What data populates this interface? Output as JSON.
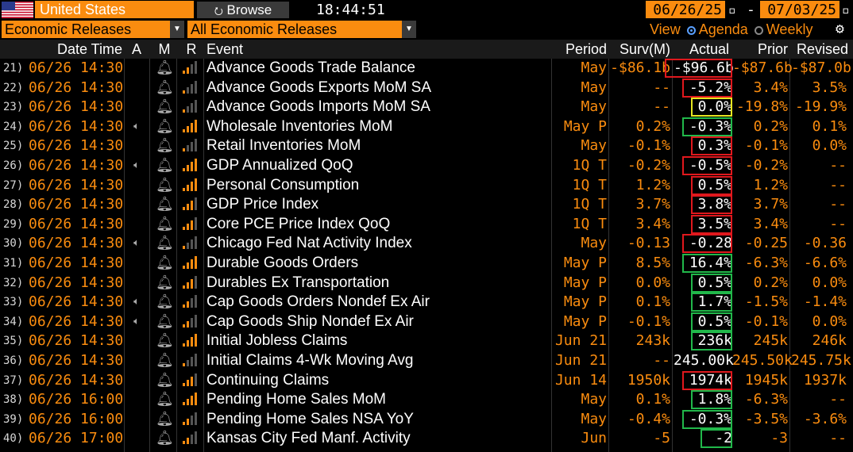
{
  "top_bar": {
    "country": "United States",
    "browse_label": "Browse",
    "time": "18:44:51",
    "start_date": "06/26/25",
    "end_date": "07/03/25"
  },
  "filter_bar": {
    "category": "Economic Releases",
    "subcategory": "All Economic Releases",
    "view_label": "View",
    "view_options": [
      "Agenda",
      "Weekly"
    ],
    "selected_view": "Agenda"
  },
  "columns": [
    "Date Time",
    "A",
    "M",
    "R",
    "Event",
    "Period",
    "Surv(M)",
    "Actual",
    "Prior",
    "Revised"
  ],
  "rows": [
    {
      "num": "21)",
      "dt": "06/26 14:30",
      "alert": false,
      "sig": 2,
      "event": "Advance Goods Trade Balance",
      "period": "May",
      "surv": "-$86.1b",
      "actual": "-$96.6b",
      "prior": "-$87.6b",
      "revised": "-$87.0b",
      "box": "red"
    },
    {
      "num": "22)",
      "dt": "06/26 14:30",
      "alert": false,
      "sig": 1,
      "event": "Advance Goods Exports MoM SA",
      "period": "May",
      "surv": "--",
      "actual": "-5.2%",
      "prior": "3.4%",
      "revised": "3.5%",
      "box": "red"
    },
    {
      "num": "23)",
      "dt": "06/26 14:30",
      "alert": false,
      "sig": 1,
      "event": "Advance Goods Imports MoM SA",
      "period": "May",
      "surv": "--",
      "actual": "0.0%",
      "prior": "-19.8%",
      "revised": "-19.9%",
      "box": "yellow"
    },
    {
      "num": "24)",
      "dt": "06/26 14:30",
      "alert": true,
      "sig": 4,
      "event": "Wholesale Inventories MoM",
      "period": "May P",
      "surv": "0.2%",
      "actual": "-0.3%",
      "prior": "0.2%",
      "revised": "0.1%",
      "box": "green"
    },
    {
      "num": "25)",
      "dt": "06/26 14:30",
      "alert": false,
      "sig": 1,
      "event": "Retail Inventories MoM",
      "period": "May",
      "surv": "-0.1%",
      "actual": "0.3%",
      "prior": "-0.1%",
      "revised": "0.0%",
      "box": "red"
    },
    {
      "num": "26)",
      "dt": "06/26 14:30",
      "alert": true,
      "sig": 4,
      "event": "GDP Annualized QoQ",
      "period": "1Q T",
      "surv": "-0.2%",
      "actual": "-0.5%",
      "prior": "-0.2%",
      "revised": "--",
      "box": "red"
    },
    {
      "num": "27)",
      "dt": "06/26 14:30",
      "alert": false,
      "sig": 4,
      "event": "Personal Consumption",
      "period": "1Q T",
      "surv": "1.2%",
      "actual": "0.5%",
      "prior": "1.2%",
      "revised": "--",
      "box": "red"
    },
    {
      "num": "28)",
      "dt": "06/26 14:30",
      "alert": false,
      "sig": 3,
      "event": "GDP Price Index",
      "period": "1Q T",
      "surv": "3.7%",
      "actual": "3.8%",
      "prior": "3.7%",
      "revised": "--",
      "box": "red"
    },
    {
      "num": "29)",
      "dt": "06/26 14:30",
      "alert": false,
      "sig": 3,
      "event": "Core PCE Price Index QoQ",
      "period": "1Q T",
      "surv": "3.4%",
      "actual": "3.5%",
      "prior": "3.4%",
      "revised": "--",
      "box": "red"
    },
    {
      "num": "30)",
      "dt": "06/26 14:30",
      "alert": true,
      "sig": 1,
      "event": "Chicago Fed Nat Activity Index",
      "period": "May",
      "surv": "-0.13",
      "actual": "-0.28",
      "prior": "-0.25",
      "revised": "-0.36",
      "box": "red"
    },
    {
      "num": "31)",
      "dt": "06/26 14:30",
      "alert": false,
      "sig": 4,
      "event": "Durable Goods Orders",
      "period": "May P",
      "surv": "8.5%",
      "actual": "16.4%",
      "prior": "-6.3%",
      "revised": "-6.6%",
      "box": "green"
    },
    {
      "num": "32)",
      "dt": "06/26 14:30",
      "alert": false,
      "sig": 3,
      "event": "Durables Ex Transportation",
      "period": "May P",
      "surv": "0.0%",
      "actual": "0.5%",
      "prior": "0.2%",
      "revised": "0.0%",
      "box": "green"
    },
    {
      "num": "33)",
      "dt": "06/26 14:30",
      "alert": true,
      "sig": 2,
      "event": "Cap Goods Orders Nondef Ex Air",
      "period": "May P",
      "surv": "0.1%",
      "actual": "1.7%",
      "prior": "-1.5%",
      "revised": "-1.4%",
      "box": "green"
    },
    {
      "num": "34)",
      "dt": "06/26 14:30",
      "alert": true,
      "sig": 2,
      "event": "Cap Goods Ship Nondef Ex Air",
      "period": "May P",
      "surv": "-0.1%",
      "actual": "0.5%",
      "prior": "-0.1%",
      "revised": "0.0%",
      "box": "green"
    },
    {
      "num": "35)",
      "dt": "06/26 14:30",
      "alert": false,
      "sig": 4,
      "event": "Initial Jobless Claims",
      "period": "Jun 21",
      "surv": "243k",
      "actual": "236k",
      "prior": "245k",
      "revised": "246k",
      "box": "green"
    },
    {
      "num": "36)",
      "dt": "06/26 14:30",
      "alert": false,
      "sig": 1,
      "event": "Initial Claims 4-Wk Moving Avg",
      "period": "Jun 21",
      "surv": "--",
      "actual": "245.00k",
      "prior": "245.50k",
      "revised": "245.75k",
      "box": ""
    },
    {
      "num": "37)",
      "dt": "06/26 14:30",
      "alert": false,
      "sig": 3,
      "event": "Continuing Claims",
      "period": "Jun 14",
      "surv": "1950k",
      "actual": "1974k",
      "prior": "1945k",
      "revised": "1937k",
      "box": "red"
    },
    {
      "num": "38)",
      "dt": "06/26 16:00",
      "alert": false,
      "sig": 4,
      "event": "Pending Home Sales MoM",
      "period": "May",
      "surv": "0.1%",
      "actual": "1.8%",
      "prior": "-6.3%",
      "revised": "--",
      "box": "green"
    },
    {
      "num": "39)",
      "dt": "06/26 16:00",
      "alert": false,
      "sig": 2,
      "event": "Pending Home Sales NSA YoY",
      "period": "May",
      "surv": "-0.4%",
      "actual": "-0.3%",
      "prior": "-3.5%",
      "revised": "-3.6%",
      "box": "green"
    },
    {
      "num": "40)",
      "dt": "06/26 17:00",
      "alert": false,
      "sig": 2,
      "event": "Kansas City Fed Manf. Activity",
      "period": "Jun",
      "surv": "-5",
      "actual": "-2",
      "prior": "-3",
      "revised": "--",
      "box": "green"
    }
  ]
}
